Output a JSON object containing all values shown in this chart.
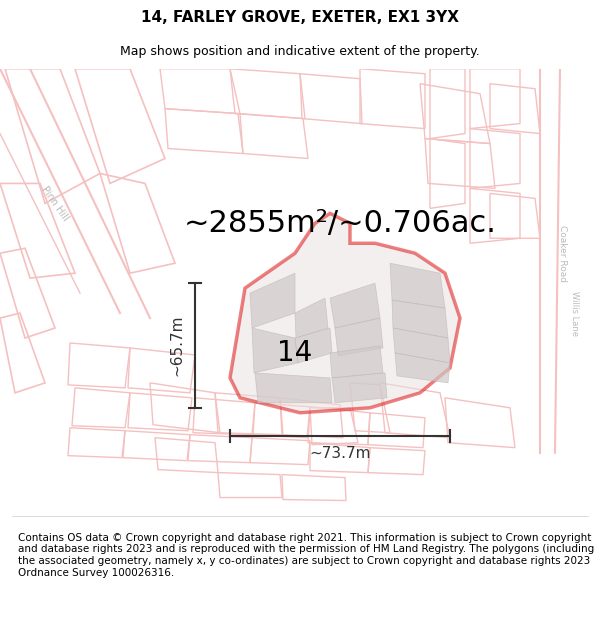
{
  "title": "14, FARLEY GROVE, EXETER, EX1 3YX",
  "subtitle": "Map shows position and indicative extent of the property.",
  "area_text": "~2855m²/~0.706ac.",
  "width_label": "~73.7m",
  "height_label": "~65.7m",
  "plot_number": "14",
  "footnote": "Contains OS data © Crown copyright and database right 2021. This information is subject to Crown copyright and database rights 2023 and is reproduced with the permission of HM Land Registry. The polygons (including the associated geometry, namely x, y co-ordinates) are subject to Crown copyright and database rights 2023 Ordnance Survey 100026316.",
  "bg_color": "#f5f0f0",
  "map_bg": "#ffffff",
  "road_color": "#f0a0a0",
  "road_color_light": "#f5c0c0",
  "plot_outline_color": "#dd0000",
  "building_fill": "#d8d0d0",
  "dim_color": "#333333",
  "title_fontsize": 11,
  "subtitle_fontsize": 9,
  "area_fontsize": 22,
  "number_fontsize": 20,
  "footnote_fontsize": 7.5
}
